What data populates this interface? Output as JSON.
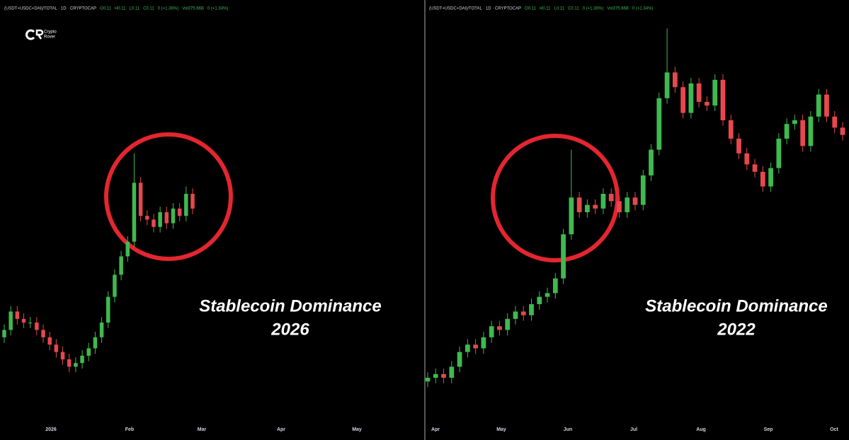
{
  "chart_data": [
    {
      "type": "candlestick",
      "header": [
        "(USDT+USDC+DAI)/TOTAL · 1D · CRYPTOCAP",
        "O0.11",
        "H0.11",
        "L0.11",
        "C0.11",
        "0 (+1.36%)",
        "Vol375.66B",
        "0 (+1.34%)"
      ],
      "logo": [
        "Crypto",
        "Rover"
      ],
      "annotation": [
        "Stablecoin Dominance",
        "2026"
      ],
      "xlabels": [
        "2026",
        "Feb",
        "Mar",
        "Apr",
        "May"
      ],
      "up_color": "#3fb950",
      "down_color": "#e5484d",
      "ylim": [
        0,
        100
      ],
      "open": [
        16,
        18,
        23,
        21,
        20,
        20,
        18,
        16,
        14,
        12,
        10,
        8,
        9,
        11,
        13,
        16,
        20,
        27,
        33,
        38,
        42,
        58,
        49,
        48,
        46,
        50,
        47,
        51,
        49,
        55
      ],
      "high": [
        19.5,
        24.5,
        24.5,
        22.5,
        21.5,
        21.5,
        19.5,
        17.5,
        15.5,
        13.5,
        11.5,
        10.5,
        12.5,
        14.5,
        17.5,
        21.5,
        28.5,
        34.5,
        39.5,
        43.5,
        66,
        59.5,
        50.5,
        49.5,
        51.5,
        51.5,
        52.5,
        52.5,
        57,
        56.5
      ],
      "low": [
        14.5,
        16.5,
        19.5,
        18.5,
        18.5,
        16.5,
        14.5,
        12.5,
        10.5,
        8.5,
        6.5,
        6.5,
        7.5,
        9.5,
        11.5,
        14.5,
        18.5,
        25.5,
        31.5,
        36.5,
        40.5,
        47.5,
        46.5,
        44.5,
        44.5,
        45.5,
        45.5,
        47.5,
        47.5,
        49.5
      ],
      "close": [
        18,
        23,
        21,
        20,
        20,
        18,
        16,
        14,
        12,
        10,
        8,
        9,
        11,
        13,
        16,
        20,
        27,
        33,
        38,
        42,
        58,
        49,
        48,
        46,
        50,
        47,
        51,
        49,
        55,
        51
      ]
    },
    {
      "type": "candlestick",
      "header": [
        "(USDT+USDC+DAI)/TOTAL · 1D · CRYPTOCAP",
        "O0.11",
        "H0.11",
        "L0.11",
        "C0.11",
        "0 (+1.36%)",
        "Vol375.66B",
        "0 (+1.34%)"
      ],
      "annotation": [
        "Stablecoin Dominance",
        "2022"
      ],
      "xlabels": [
        "Apr",
        "May",
        "Jun",
        "Jul",
        "Aug",
        "Sep",
        "Oct"
      ],
      "up_color": "#3fb950",
      "down_color": "#e5484d",
      "ylim": [
        0,
        100
      ],
      "open": [
        4,
        5,
        6,
        5,
        8,
        12,
        14,
        13,
        16,
        19,
        18,
        21,
        23,
        22,
        25,
        27,
        28,
        32,
        44,
        54,
        50,
        52,
        51,
        55,
        53,
        50,
        54,
        52,
        60,
        67,
        81,
        88,
        84,
        77,
        85,
        80,
        79,
        86,
        75,
        70,
        66,
        63,
        61,
        57,
        62,
        70,
        74,
        75,
        68,
        76,
        82,
        76,
        73
      ],
      "high": [
        6.5,
        7.5,
        7.5,
        9.5,
        13.5,
        15.5,
        15.5,
        17.5,
        20.5,
        20.5,
        22.5,
        24.5,
        24.5,
        26.5,
        28.5,
        29.5,
        33.5,
        45.5,
        67,
        55.5,
        53.5,
        53.5,
        56.5,
        56.5,
        54.5,
        55.5,
        55.5,
        61.5,
        68.5,
        82.5,
        100,
        89.5,
        85.5,
        86.5,
        86.5,
        81.5,
        87.5,
        87.5,
        76.5,
        71.5,
        67.5,
        64.5,
        62.5,
        63.5,
        71.5,
        75.5,
        76.5,
        76.5,
        77.5,
        83.5,
        83.5,
        77.5,
        74.5
      ],
      "low": [
        2.5,
        3.5,
        3.5,
        3.5,
        6.5,
        10.5,
        11.5,
        11.5,
        14.5,
        16.5,
        16.5,
        19.5,
        20.5,
        20.5,
        23.5,
        25.5,
        26.5,
        30.5,
        42.5,
        48.5,
        48.5,
        49.5,
        49.5,
        51.5,
        48.5,
        48.5,
        50.5,
        50.5,
        58.5,
        65.5,
        79.5,
        82.5,
        75.5,
        75.5,
        78.5,
        77.5,
        77.5,
        73.5,
        68.5,
        64.5,
        61.5,
        59.5,
        55.5,
        55.5,
        60.5,
        68.5,
        72.5,
        66.5,
        66.5,
        74.5,
        74.5,
        71.5,
        69.5
      ],
      "close": [
        5,
        6,
        5,
        8,
        12,
        14,
        13,
        16,
        19,
        18,
        21,
        23,
        22,
        25,
        27,
        28,
        32,
        44,
        54,
        50,
        52,
        51,
        55,
        53,
        50,
        54,
        52,
        60,
        67,
        81,
        88,
        84,
        77,
        85,
        80,
        79,
        86,
        75,
        70,
        66,
        63,
        61,
        57,
        62,
        70,
        74,
        75,
        68,
        76,
        82,
        76,
        73,
        71
      ]
    }
  ]
}
